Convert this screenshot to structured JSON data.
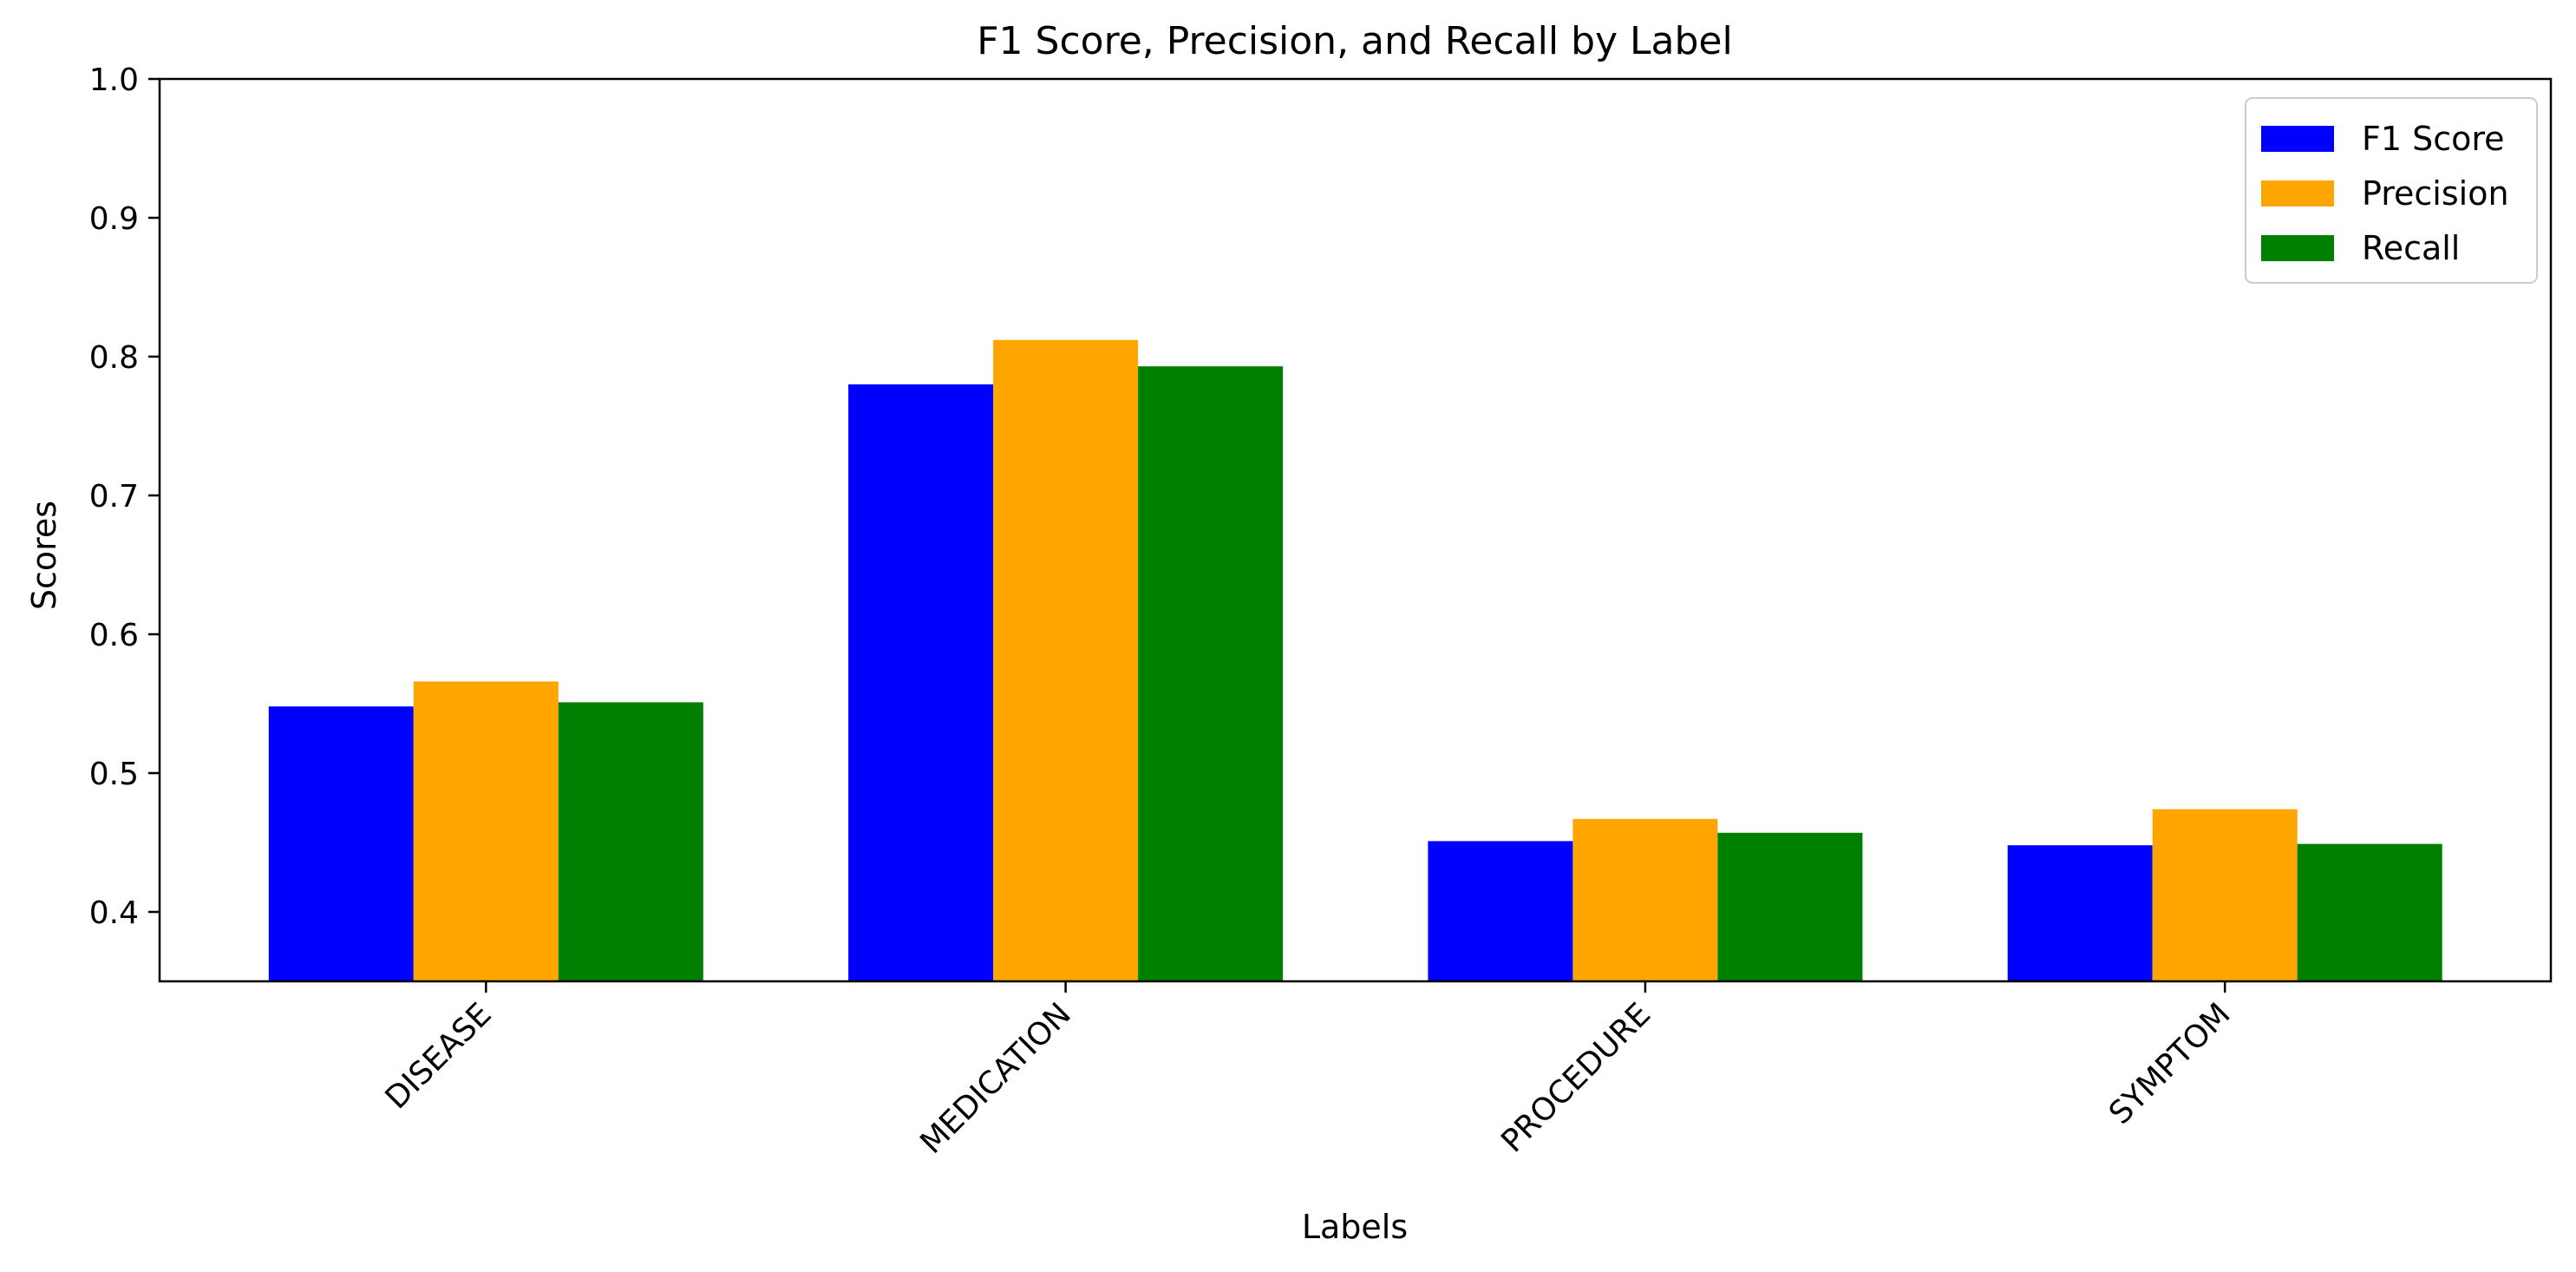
{
  "chart_data": {
    "type": "bar",
    "title": "F1 Score, Precision, and Recall by Label",
    "xlabel": "Labels",
    "ylabel": "Scores",
    "ylim": [
      0.35,
      1.0
    ],
    "yticks": [
      "0.4",
      "0.5",
      "0.6",
      "0.7",
      "0.8",
      "0.9",
      "1.0"
    ],
    "categories": [
      "DISEASE",
      "MEDICATION",
      "PROCEDURE",
      "SYMPTOM"
    ],
    "series": [
      {
        "name": "F1 Score",
        "color": "#0000ff",
        "values": [
          0.548,
          0.78,
          0.451,
          0.448
        ]
      },
      {
        "name": "Precision",
        "color": "#ffa500",
        "values": [
          0.566,
          0.812,
          0.467,
          0.474
        ]
      },
      {
        "name": "Recall",
        "color": "#008000",
        "values": [
          0.551,
          0.793,
          0.457,
          0.449
        ]
      }
    ],
    "legend_position": "top-right",
    "grid": false
  }
}
